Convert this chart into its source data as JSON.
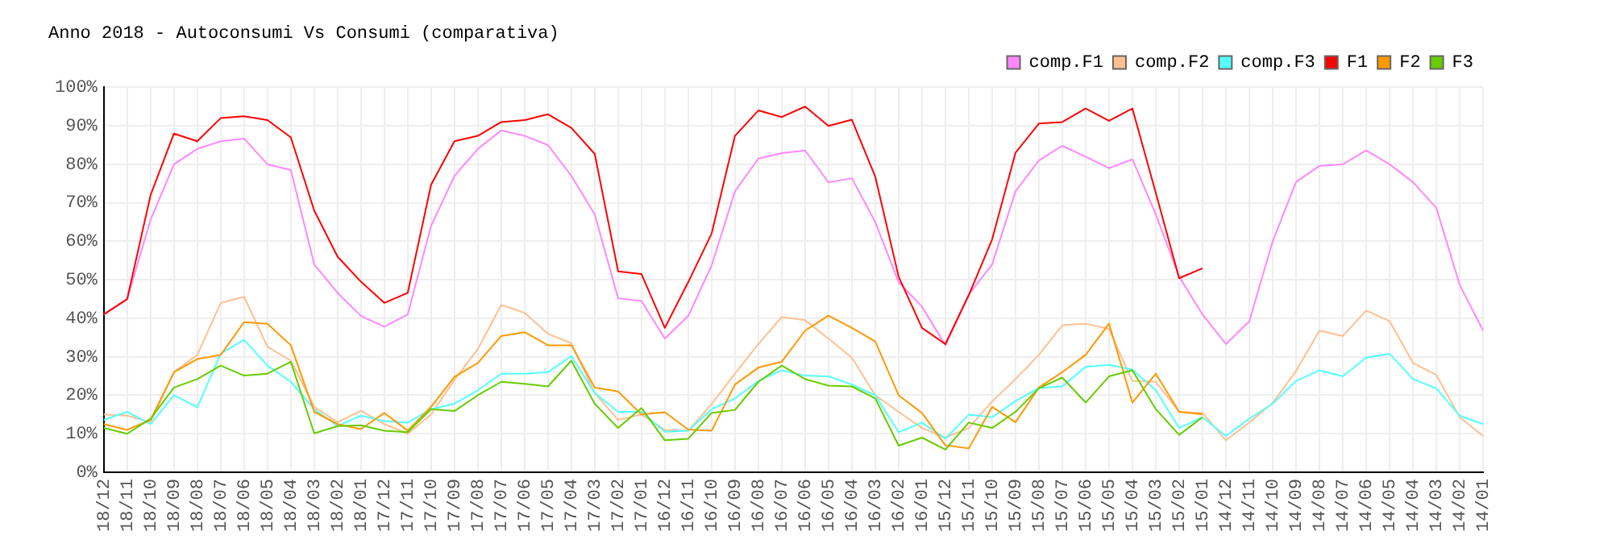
{
  "chart_data": {
    "type": "line",
    "title": "Anno 2018 - Autoconsumi Vs Consumi (comparativa)",
    "categories": [
      "18/12",
      "18/11",
      "18/10",
      "18/09",
      "18/08",
      "18/07",
      "18/06",
      "18/05",
      "18/04",
      "18/03",
      "18/02",
      "18/01",
      "17/12",
      "17/11",
      "17/10",
      "17/09",
      "17/08",
      "17/07",
      "17/06",
      "17/05",
      "17/04",
      "17/03",
      "17/02",
      "17/01",
      "16/12",
      "16/11",
      "16/10",
      "16/09",
      "16/08",
      "16/07",
      "16/06",
      "16/05",
      "16/04",
      "16/03",
      "16/02",
      "16/01",
      "15/12",
      "15/11",
      "15/10",
      "15/09",
      "15/08",
      "15/07",
      "15/06",
      "15/05",
      "15/04",
      "15/03",
      "15/02",
      "15/01",
      "14/12",
      "14/11",
      "14/10",
      "14/09",
      "14/08",
      "14/07",
      "14/06",
      "14/05",
      "14/04",
      "14/03",
      "14/02",
      "14/01"
    ],
    "series": [
      {
        "name": "comp.F1",
        "color": "#ff88ff",
        "values": [
          41,
          45,
          65.6,
          80,
          84,
          86,
          86.7,
          80,
          78.5,
          54,
          46.6,
          40.6,
          37.8,
          41,
          64,
          77,
          84,
          88.8,
          87.4,
          85,
          77,
          67,
          45.2,
          44.5,
          34.7,
          40.6,
          53.7,
          73,
          81.5,
          82.9,
          83.6,
          75.3,
          76.4,
          65,
          49.4,
          43,
          33,
          46.2,
          54,
          73,
          81,
          84.8,
          82,
          79,
          81.3,
          67,
          50.8,
          41,
          33.3,
          39.2,
          60,
          75.4,
          79.6,
          80,
          83.6,
          80,
          75.4,
          68.7,
          48.7,
          36.8
        ]
      },
      {
        "name": "comp.F2",
        "color": "#ffc090",
        "values": [
          15,
          14.7,
          13,
          26,
          30.5,
          44,
          45.6,
          32.6,
          29,
          17,
          13,
          16,
          12.5,
          10,
          15,
          24,
          32,
          43.5,
          41.4,
          36,
          33.5,
          20.6,
          13.6,
          15,
          11,
          10.8,
          17.7,
          25.6,
          33.3,
          40.3,
          39.5,
          34.7,
          29.8,
          20,
          15.7,
          11.5,
          9,
          11.5,
          18.4,
          24.2,
          30.5,
          38.2,
          38.6,
          37.2,
          23.7,
          23.5,
          15.7,
          15.4,
          8.3,
          12.9,
          18,
          26.3,
          36.8,
          35.4,
          42,
          39.3,
          28.4,
          25.3,
          14.3,
          9.4
        ]
      },
      {
        "name": "comp.F3",
        "color": "#55ffff",
        "values": [
          13.6,
          15.7,
          12.5,
          20,
          16.9,
          30.8,
          34.4,
          27.7,
          23.5,
          16.4,
          12,
          14.7,
          13.3,
          12.9,
          16.4,
          17.8,
          21.3,
          25.6,
          25.6,
          26,
          30.2,
          20.6,
          15.7,
          15.7,
          10.5,
          10.8,
          16.4,
          19.2,
          23.7,
          26.5,
          25.1,
          24.9,
          22.8,
          20,
          10.4,
          12.9,
          8.7,
          15,
          14.3,
          18.5,
          21.9,
          22.3,
          27.4,
          27.9,
          26.7,
          21.3,
          11.5,
          14.3,
          9.4,
          13.9,
          17.8,
          23.7,
          26.5,
          24.9,
          29.8,
          30.8,
          24.2,
          21.8,
          14.7,
          12.5
        ]
      },
      {
        "name": "F1",
        "color": "#ff0000",
        "values": [
          41,
          45,
          72,
          88,
          86,
          92,
          92.5,
          91.5,
          87,
          68,
          56,
          49.5,
          44,
          46.6,
          74.7,
          86,
          87.4,
          91,
          91.5,
          93,
          89.5,
          82.7,
          52.2,
          51.5,
          37.5,
          49.4,
          62,
          87.4,
          94,
          92.3,
          95,
          90,
          91.6,
          76.8,
          50.8,
          37.5,
          33.3,
          46,
          60.5,
          83,
          90.6,
          91,
          94.5,
          91.3,
          94.5,
          72.6,
          50.4,
          53,
          null,
          null,
          null,
          null,
          null,
          null,
          null,
          null,
          null,
          null,
          null,
          null
        ]
      },
      {
        "name": "F2",
        "color": "#ff9900",
        "values": [
          12.5,
          11,
          13.6,
          26,
          29.4,
          30.5,
          39,
          38.6,
          33,
          15.7,
          12.5,
          11.2,
          15.4,
          10.8,
          17,
          24.8,
          28.4,
          35.4,
          36.4,
          33,
          33,
          22,
          21,
          15,
          15.6,
          11.1,
          10.8,
          22.8,
          27.2,
          28.7,
          36.8,
          40.7,
          37.5,
          34,
          20,
          15.4,
          7,
          6.2,
          17,
          13,
          22,
          26,
          30.5,
          38.6,
          18.1,
          25.6,
          15.7,
          15,
          null,
          null,
          null,
          null,
          null,
          null,
          null,
          null,
          null,
          null,
          null,
          null
        ]
      },
      {
        "name": "F3",
        "color": "#66cc00",
        "values": [
          11.5,
          10,
          13.9,
          22,
          24.2,
          27.7,
          25.1,
          25.6,
          28.7,
          10.1,
          12,
          12.2,
          10.8,
          10.4,
          16.4,
          15.9,
          20,
          23.5,
          23,
          22.3,
          29,
          17.8,
          11.5,
          16.7,
          8.3,
          8.7,
          15.4,
          16.2,
          23.5,
          27.7,
          24.2,
          22.5,
          22.3,
          19.2,
          6.9,
          9,
          5.9,
          12.9,
          11.5,
          15.7,
          21.8,
          24.6,
          18.1,
          24.9,
          26.5,
          16.4,
          9.7,
          14.3,
          null,
          null,
          null,
          null,
          null,
          null,
          null,
          null,
          null,
          null,
          null,
          null
        ]
      }
    ],
    "ylim": [
      0,
      100
    ],
    "yticks": [
      {
        "value": 0,
        "label": "0%"
      },
      {
        "value": 10,
        "label": "10%"
      },
      {
        "value": 20,
        "label": "20%"
      },
      {
        "value": 30,
        "label": "30%"
      },
      {
        "value": 40,
        "label": "40%"
      },
      {
        "value": 50,
        "label": "50%"
      },
      {
        "value": 60,
        "label": "60%"
      },
      {
        "value": 70,
        "label": "70%"
      },
      {
        "value": 80,
        "label": "80%"
      },
      {
        "value": 90,
        "label": "90%"
      },
      {
        "value": 100,
        "label": "100%"
      }
    ],
    "grid": true,
    "legend": "top right",
    "marker": "none",
    "line_style": "solid"
  }
}
